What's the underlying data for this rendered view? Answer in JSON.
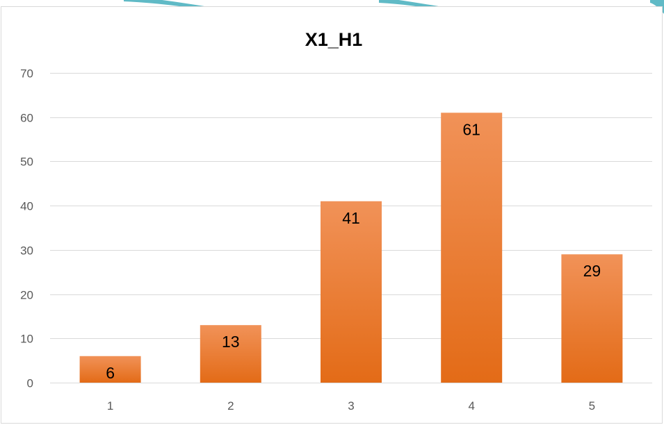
{
  "chart_data": {
    "type": "bar",
    "title": "X1_H1",
    "xlabel": "",
    "ylabel": "",
    "categories": [
      "1",
      "2",
      "3",
      "4",
      "5"
    ],
    "values": [
      6,
      13,
      41,
      61,
      29
    ],
    "ylim": [
      0,
      70
    ],
    "y_ticks": [
      0,
      10,
      20,
      30,
      40,
      50,
      60,
      70
    ],
    "grid": "horizontal",
    "data_labels": "inside-end",
    "legend": "none",
    "colors": {
      "bar_top": "#f19258",
      "bar_bottom": "#e36b17",
      "gridline": "#d9d9d9",
      "axis_text": "#595959",
      "frame_border": "#d9d9d9",
      "background_watermark": "#4fb3c0"
    }
  }
}
